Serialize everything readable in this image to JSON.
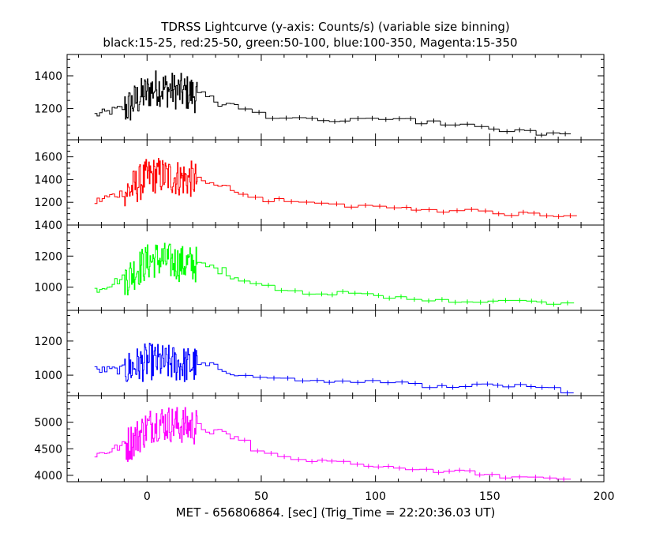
{
  "chart_data": {
    "type": "line",
    "title": "TDRSS Lightcurve (y-axis: Counts/s) (variable size binning)",
    "subtitle": "black:15-25, red:25-50, green:50-100, blue:100-350, Magenta:15-350",
    "xlabel": "MET - 656806864. [sec] (Trig_Time = 22:20:36.03 UT)",
    "xlim": [
      -35,
      200
    ],
    "xticks": [
      0,
      50,
      100,
      150,
      200
    ],
    "xtick_labels": [
      "0",
      "50",
      "100",
      "150",
      "200"
    ],
    "panels": [
      {
        "name": "black:15-25",
        "color": "#000000",
        "ylim": [
          1010,
          1530
        ],
        "yticks": [
          1200,
          1400
        ],
        "ytick_labels": [
          "1200",
          "1400"
        ],
        "x": [
          -23,
          -18,
          -13,
          -8,
          -4,
          0,
          4,
          8,
          12,
          16,
          20,
          24,
          28,
          32,
          36,
          40,
          45,
          50,
          55,
          60,
          65,
          70,
          75,
          80,
          85,
          90,
          95,
          100,
          105,
          110,
          115,
          120,
          125,
          130,
          135,
          140,
          145,
          150,
          155,
          160,
          165,
          170,
          175,
          180,
          185
        ],
        "values": [
          1160,
          1175,
          1195,
          1210,
          1260,
          1300,
          1330,
          1320,
          1310,
          1300,
          1290,
          1280,
          1260,
          1240,
          1230,
          1210,
          1190,
          1160,
          1150,
          1150,
          1150,
          1140,
          1130,
          1130,
          1120,
          1130,
          1140,
          1130,
          1140,
          1140,
          1130,
          1120,
          1130,
          1110,
          1110,
          1100,
          1100,
          1080,
          1070,
          1060,
          1060,
          1050,
          1040,
          1040,
          1040
        ]
      },
      {
        "name": "red:25-50",
        "color": "#ff0000",
        "ylim": [
          1000,
          1750
        ],
        "yticks": [
          1200,
          1400,
          1600
        ],
        "ytick_labels": [
          "1200",
          "1400",
          "1600"
        ],
        "x": [
          -23,
          -18,
          -13,
          -8,
          -4,
          0,
          4,
          8,
          12,
          16,
          20,
          24,
          28,
          32,
          36,
          40,
          45,
          50,
          55,
          60,
          65,
          70,
          75,
          80,
          85,
          90,
          95,
          100,
          105,
          110,
          115,
          120,
          125,
          130,
          135,
          140,
          145,
          150,
          155,
          160,
          165,
          170,
          175,
          180,
          185
        ],
        "values": [
          1200,
          1240,
          1270,
          1300,
          1360,
          1420,
          1440,
          1430,
          1420,
          1410,
          1400,
          1380,
          1360,
          1340,
          1330,
          1300,
          1260,
          1230,
          1220,
          1210,
          1200,
          1190,
          1180,
          1180,
          1180,
          1170,
          1180,
          1170,
          1160,
          1150,
          1150,
          1140,
          1140,
          1130,
          1130,
          1120,
          1120,
          1110,
          1110,
          1100,
          1100,
          1090,
          1090,
          1090,
          1080
        ]
      },
      {
        "name": "green:50-100",
        "color": "#00ff00",
        "ylim": [
          850,
          1400
        ],
        "yticks": [
          1000,
          1200,
          1400
        ],
        "ytick_labels": [
          "1000",
          "1200",
          "1400"
        ],
        "x": [
          -23,
          -18,
          -13,
          -8,
          -4,
          0,
          4,
          8,
          12,
          16,
          20,
          24,
          28,
          32,
          36,
          40,
          45,
          50,
          55,
          60,
          65,
          70,
          75,
          80,
          85,
          90,
          95,
          100,
          105,
          110,
          115,
          120,
          125,
          130,
          135,
          140,
          145,
          150,
          155,
          160,
          165,
          170,
          175,
          180,
          185
        ],
        "values": [
          980,
          1010,
          1040,
          1070,
          1120,
          1160,
          1180,
          1170,
          1160,
          1150,
          1150,
          1140,
          1130,
          1110,
          1090,
          1060,
          1040,
          1010,
          1000,
          990,
          990,
          970,
          960,
          960,
          960,
          950,
          950,
          940,
          930,
          930,
          930,
          920,
          920,
          920,
          915,
          910,
          910,
          910,
          905,
          905,
          905,
          900,
          900,
          900,
          900
        ]
      },
      {
        "name": "blue:100-350",
        "color": "#0000ff",
        "ylim": [
          880,
          1380
        ],
        "yticks": [
          1000,
          1200
        ],
        "ytick_labels": [
          "1000",
          "1200"
        ],
        "x": [
          -23,
          -18,
          -13,
          -8,
          -4,
          0,
          4,
          8,
          12,
          16,
          20,
          24,
          28,
          32,
          36,
          40,
          45,
          50,
          55,
          60,
          65,
          70,
          75,
          80,
          85,
          90,
          95,
          100,
          105,
          110,
          115,
          120,
          125,
          130,
          135,
          140,
          145,
          150,
          155,
          160,
          165,
          170,
          175,
          180,
          185
        ],
        "values": [
          1030,
          1030,
          1030,
          1040,
          1060,
          1080,
          1080,
          1070,
          1070,
          1060,
          1060,
          1060,
          1050,
          1040,
          1030,
          1010,
          1000,
          990,
          990,
          980,
          980,
          970,
          970,
          970,
          960,
          960,
          960,
          960,
          950,
          950,
          950,
          940,
          940,
          940,
          940,
          940,
          940,
          940,
          940,
          940,
          940,
          940,
          930,
          920,
          900
        ]
      },
      {
        "name": "Magenta:15-350",
        "color": "#ff00ff",
        "ylim": [
          3880,
          5500
        ],
        "yticks": [
          4000,
          4500,
          5000
        ],
        "ytick_labels": [
          "4000",
          "4500",
          "5000"
        ],
        "x": [
          -23,
          -18,
          -13,
          -8,
          -4,
          0,
          4,
          8,
          12,
          16,
          20,
          24,
          28,
          32,
          36,
          40,
          45,
          50,
          55,
          60,
          65,
          70,
          75,
          80,
          85,
          90,
          95,
          100,
          105,
          110,
          115,
          120,
          125,
          130,
          135,
          140,
          145,
          150,
          155,
          160,
          165,
          170,
          175,
          180,
          185
        ],
        "values": [
          4380,
          4440,
          4520,
          4600,
          4740,
          4900,
          5000,
          4980,
          4960,
          4940,
          4920,
          4900,
          4840,
          4790,
          4750,
          4690,
          4600,
          4450,
          4380,
          4360,
          4320,
          4300,
          4270,
          4250,
          4230,
          4220,
          4210,
          4190,
          4170,
          4150,
          4130,
          4110,
          4100,
          4080,
          4070,
          4060,
          4050,
          4010,
          3980,
          3960,
          3940,
          3930,
          3920,
          3910,
          3900
        ]
      }
    ]
  }
}
